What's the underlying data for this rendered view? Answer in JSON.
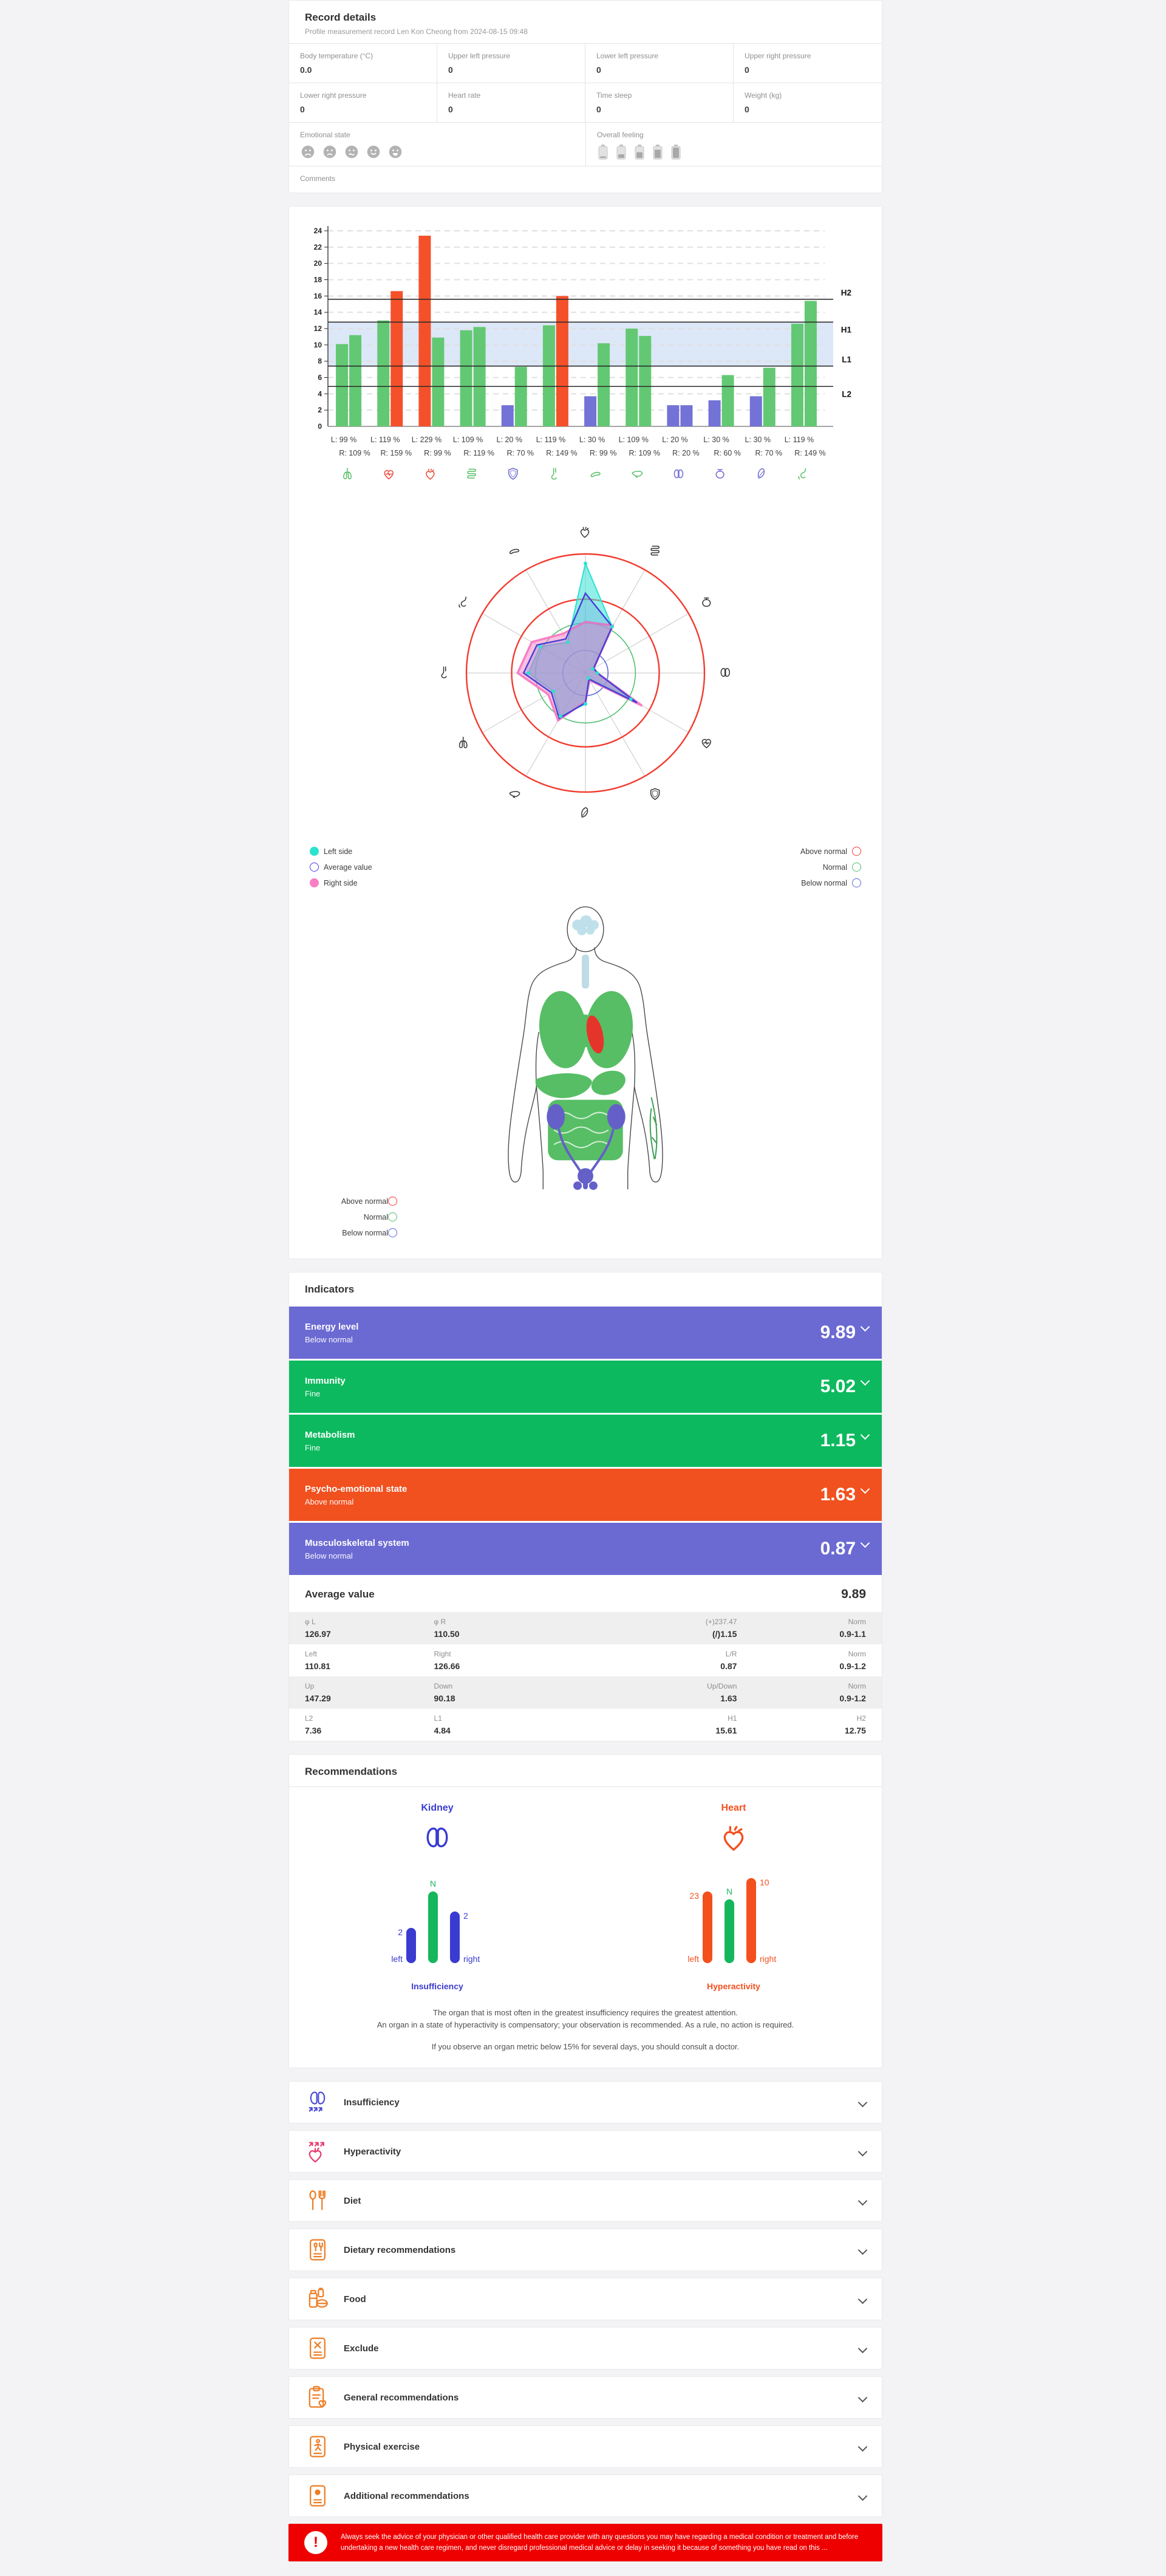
{
  "record": {
    "title": "Record details",
    "subtitle": "Profile measurement record Len Kon Cheong from 2024-08-15 09:48",
    "fields": [
      {
        "label": "Body temperature (°C)",
        "value": "0.0"
      },
      {
        "label": "Upper left pressure",
        "value": "0"
      },
      {
        "label": "Lower left pressure",
        "value": "0"
      },
      {
        "label": "Upper right pressure",
        "value": "0"
      },
      {
        "label": "Lower right pressure",
        "value": "0"
      },
      {
        "label": "Heart rate",
        "value": "0"
      },
      {
        "label": "Time sleep",
        "value": "0"
      },
      {
        "label": "Weight (kg)",
        "value": "0"
      }
    ],
    "emotional_state_label": "Emotional state",
    "overall_feeling_label": "Overall feeling",
    "comments_label": "Comments",
    "emotional_faces": [
      "crying-face",
      "sad-face",
      "confused-face",
      "smiling-face",
      "grinning-face"
    ],
    "battery_levels": [
      0.15,
      0.35,
      0.55,
      0.8,
      1.0
    ]
  },
  "colors": {
    "barGreen": "#63C873",
    "barRed": "#F4512A",
    "barPurple": "#7372D6",
    "band": "#DCE7F7",
    "iconGreen": "#57BE66",
    "iconRed": "#EE4433",
    "iconPurple": "#6E6AD0",
    "cyan": "#2BE2CF",
    "pink": "#F77FC4",
    "avgBlue": "#4640D6",
    "ringRed": "#F23B2F",
    "ringGreen": "#52BE71",
    "ringBlue": "#5A6AD8",
    "indicatorPurple": "#6B6AD3",
    "indicatorGreen": "#0DB95F",
    "indicatorOrange": "#F1511F",
    "kidneyBlue": "#3B3BD1",
    "normGreen": "#16B75C",
    "heartOrange": "#F4501E",
    "accOrange": "#EE7D24",
    "accBlue": "#4E4ED8",
    "accPink": "#E83A6C",
    "disclaimerRed": "#EE0000"
  },
  "chart_data": [
    {
      "type": "bar",
      "title": "Organ activity left/right",
      "ylim": [
        0,
        24
      ],
      "ytick": 2,
      "grid": true,
      "thresholds": [
        {
          "label": "H2",
          "value": 15.6,
          "label_side": "above"
        },
        {
          "label": "H1",
          "value": 12.8,
          "label_side": "below"
        },
        {
          "label": "L1",
          "value": 7.4,
          "label_side": "above"
        },
        {
          "label": "L2",
          "value": 4.9,
          "label_side": "below"
        }
      ],
      "normal_band": [
        7.4,
        12.8
      ],
      "categories": [
        "lungs",
        "heart",
        "cardiovascular",
        "intestine",
        "immunity",
        "esophagus",
        "pancreas",
        "liver",
        "kidneys",
        "bladder",
        "spleen",
        "stomach"
      ],
      "icon_colors": [
        "green",
        "red",
        "red",
        "green",
        "purple",
        "green",
        "green",
        "green",
        "purple",
        "purple",
        "purple",
        "green"
      ],
      "series": [
        {
          "name": "Left",
          "values": [
            10.1,
            13.0,
            23.4,
            11.8,
            2.6,
            12.4,
            3.7,
            12.0,
            2.6,
            3.2,
            3.7,
            12.6
          ],
          "status": [
            "normal",
            "normal",
            "above",
            "normal",
            "below",
            "normal",
            "below",
            "normal",
            "below",
            "below",
            "below",
            "normal"
          ],
          "labels": [
            "L: 99 %",
            "L: 119 %",
            "L: 229 %",
            "L: 109 %",
            "L: 20 %",
            "L: 119 %",
            "L: 30 %",
            "L: 109 %",
            "L: 20 %",
            "L: 30 %",
            "L: 30 %",
            "L: 119 %"
          ]
        },
        {
          "name": "Right",
          "values": [
            11.2,
            16.6,
            10.9,
            12.2,
            7.3,
            16.0,
            10.2,
            11.1,
            2.6,
            6.3,
            7.2,
            15.4
          ],
          "status": [
            "normal",
            "above",
            "normal",
            "normal",
            "normal",
            "above",
            "normal",
            "normal",
            "below",
            "normal",
            "normal",
            "normal"
          ],
          "labels": [
            "R: 109 %",
            "R: 159 %",
            "R: 99 %",
            "R: 119 %",
            "R: 70 %",
            "R: 149 %",
            "R: 99 %",
            "R: 109 %",
            "R: 20 %",
            "R: 60 %",
            "R: 70 %",
            "R: 149 %"
          ]
        }
      ]
    },
    {
      "type": "radar",
      "title": "Organ balance radar",
      "axes": [
        "cardiovascular",
        "intestine",
        "bladder",
        "kidneys",
        "heart",
        "immunity",
        "spleen",
        "liver",
        "lungs",
        "esophagus",
        "stomach",
        "pancreas"
      ],
      "rings": [
        {
          "radius": 1.0,
          "color": "ringRed"
        },
        {
          "radius": 0.62,
          "color": "ringRed"
        },
        {
          "radius": 0.42,
          "color": "ringGreen"
        },
        {
          "radius": 0.19,
          "color": "ringBlue"
        }
      ],
      "series": [
        {
          "name": "Left side",
          "values": [
            0.92,
            0.45,
            0.07,
            0.1,
            0.44,
            0.05,
            0.26,
            0.42,
            0.31,
            0.48,
            0.44,
            0.3
          ]
        },
        {
          "name": "Average value",
          "values": [
            0.67,
            0.45,
            0.08,
            0.1,
            0.5,
            0.06,
            0.25,
            0.44,
            0.33,
            0.52,
            0.47,
            0.33
          ]
        },
        {
          "name": "Right side",
          "values": [
            0.43,
            0.46,
            0.08,
            0.1,
            0.55,
            0.07,
            0.24,
            0.46,
            0.36,
            0.57,
            0.52,
            0.38
          ]
        }
      ],
      "legend_left": [
        {
          "label": "Left side",
          "swatch": "cyan-filled"
        },
        {
          "label": "Average value",
          "swatch": "blue-outline"
        },
        {
          "label": "Right side",
          "swatch": "pink-filled"
        }
      ],
      "legend_right": [
        {
          "label": "Above normal",
          "swatch": "red-outline"
        },
        {
          "label": "Normal",
          "swatch": "green-outline"
        },
        {
          "label": "Below normal",
          "swatch": "blue-outline"
        }
      ]
    },
    {
      "type": "bar",
      "title": "Kidney insufficiency mini chart",
      "organ": "Kidney",
      "caption": "Insufficiency",
      "categories": [
        "left",
        "N",
        "right"
      ],
      "values": [
        2,
        null,
        2
      ],
      "bar_labels": [
        "2",
        "N",
        "2"
      ],
      "bar_heights": [
        58,
        118,
        85
      ],
      "foot_labels": [
        "left",
        "right"
      ]
    },
    {
      "type": "bar",
      "title": "Heart hyperactivity mini chart",
      "organ": "Heart",
      "caption": "Hyperactivity",
      "categories": [
        "left",
        "N",
        "right"
      ],
      "values": [
        23,
        null,
        10
      ],
      "bar_labels": [
        "23",
        "N",
        "10"
      ],
      "bar_heights": [
        118,
        105,
        140
      ],
      "foot_labels": [
        "left",
        "right"
      ]
    }
  ],
  "body_diagram_legend": [
    {
      "label": "Above normal",
      "swatch": "red-outline"
    },
    {
      "label": "Normal",
      "swatch": "green-outline"
    },
    {
      "label": "Below normal",
      "swatch": "blue-outline"
    }
  ],
  "indicators": {
    "title": "Indicators",
    "rows": [
      {
        "label": "Energy level",
        "status": "Below normal",
        "value": "9.89",
        "color": "indicatorPurple"
      },
      {
        "label": "Immunity",
        "status": "Fine",
        "value": "5.02",
        "color": "indicatorGreen"
      },
      {
        "label": "Metabolism",
        "status": "Fine",
        "value": "1.15",
        "color": "indicatorGreen"
      },
      {
        "label": "Psycho-emotional state",
        "status": "Above normal",
        "value": "1.63",
        "color": "indicatorOrange"
      },
      {
        "label": "Musculoskeletal system",
        "status": "Below normal",
        "value": "0.87",
        "color": "indicatorPurple"
      }
    ],
    "average_label": "Average value",
    "average_value": "9.89",
    "table": [
      [
        {
          "l": "φ L",
          "v": "126.97"
        },
        {
          "l": "φ R",
          "v": "110.50"
        },
        {
          "l": "(+)237.47",
          "v": "(/)1.15"
        },
        {
          "l": "Norm",
          "v": "0.9-1.1"
        }
      ],
      [
        {
          "l": "Left",
          "v": "110.81"
        },
        {
          "l": "Right",
          "v": "126.66"
        },
        {
          "l": "L/R",
          "v": "0.87"
        },
        {
          "l": "Norm",
          "v": "0.9-1.2"
        }
      ],
      [
        {
          "l": "Up",
          "v": "147.29"
        },
        {
          "l": "Down",
          "v": "90.18"
        },
        {
          "l": "Up/Down",
          "v": "1.63"
        },
        {
          "l": "Norm",
          "v": "0.9-1.2"
        }
      ],
      [
        {
          "l": "L2",
          "v": "7.36"
        },
        {
          "l": "L1",
          "v": "4.84"
        },
        {
          "l": "H1",
          "v": "15.61"
        },
        {
          "l": "H2",
          "v": "12.75"
        }
      ]
    ]
  },
  "recommendations": {
    "title": "Recommendations",
    "notes": [
      "The organ that is most often in the greatest insufficiency requires the greatest attention.",
      "An organ in a state of hyperactivity is compensatory; your observation is recommended. As a rule, no action is required.",
      "If you observe an organ metric below 15% for several days, you should consult a doctor."
    ]
  },
  "accordions": [
    {
      "icon": "kidney-down-icon",
      "label": "Insufficiency",
      "color": "accBlue"
    },
    {
      "icon": "heart-up-icon",
      "label": "Hyperactivity",
      "color": "accPink"
    },
    {
      "icon": "cutlery-icon",
      "label": "Diet",
      "color": "accOrange"
    },
    {
      "icon": "doc-cutlery-icon",
      "label": "Dietary recommendations",
      "color": "accOrange"
    },
    {
      "icon": "food-jars-icon",
      "label": "Food",
      "color": "accOrange"
    },
    {
      "icon": "doc-x-icon",
      "label": "Exclude",
      "color": "accOrange"
    },
    {
      "icon": "clipboard-heart-icon",
      "label": "General recommendations",
      "color": "accOrange"
    },
    {
      "icon": "doc-runner-icon",
      "label": "Physical exercise",
      "color": "accOrange"
    },
    {
      "icon": "doc-pill-icon",
      "label": "Additional recommendations",
      "color": "accOrange"
    }
  ],
  "disclaimer": {
    "text": "Always seek the advice of your physician or other qualified health care provider with any questions you may have regarding a medical condition or treatment and before undertaking a new health care regimen, and never disregard professional medical advice or delay in seeking it because of something you have read on this ..."
  }
}
